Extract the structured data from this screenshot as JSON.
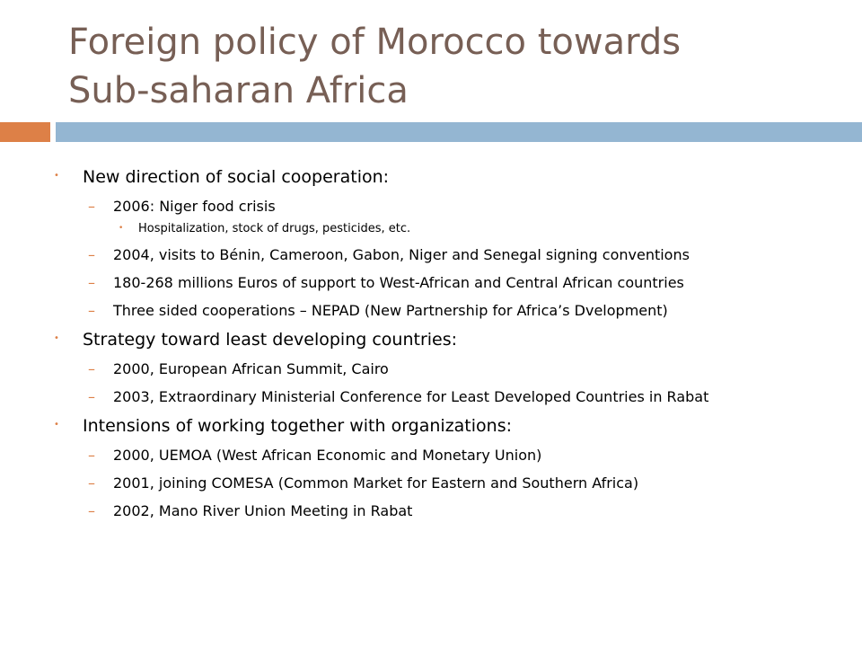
{
  "slide": {
    "title_lines": [
      "Foreign policy of Morocco towards",
      "Sub-saharan Africa"
    ],
    "items": [
      {
        "text": "New direction of social cooperation:",
        "level": 1
      },
      {
        "text": "2006: Niger food crisis",
        "level": 2
      },
      {
        "text": "Hospitalization, stock of drugs, pesticides, etc.",
        "level": 3
      },
      {
        "text": "2004, visits to Bénin, Cameroon, Gabon, Niger and Senegal signing conventions",
        "level": 2
      },
      {
        "text": "180-268 millions Euros of support to West-African and Central African countries",
        "level": 2
      },
      {
        "text": "Three sided cooperations – NEPAD (New Partnership for Africa’s Dvelopment)",
        "level": 2
      },
      {
        "text": "Strategy toward least developing countries:",
        "level": 1
      },
      {
        "text": "2000, European African Summit, Cairo",
        "level": 2
      },
      {
        "text": "2003, Extraordinary Ministerial Conference for Least Developed Countries in Rabat",
        "level": 2
      },
      {
        "text": "Intensions of working together with organizations:",
        "level": 1
      },
      {
        "text": "2000, UEMOA (West African Economic and Monetary Union)",
        "level": 2
      },
      {
        "text": "2001, joining COMESA (Common Market for Eastern and Southern Africa)",
        "level": 2
      },
      {
        "text": "2002, Mano River Union Meeting in Rabat",
        "level": 2
      }
    ]
  }
}
